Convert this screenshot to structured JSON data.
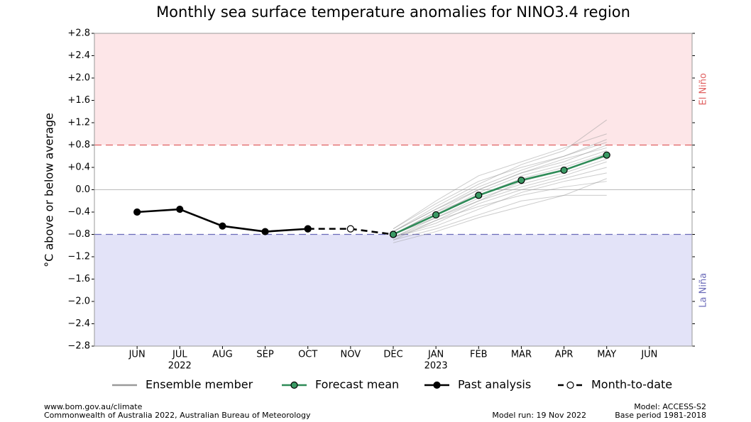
{
  "chart_data": {
    "type": "line",
    "title": "Monthly sea surface temperature anomalies for NINO3.4 region",
    "y_label": "°C above or below average",
    "categories": [
      "JUN",
      "JUL",
      "AUG",
      "SEP",
      "OCT",
      "NOV",
      "DEC",
      "JAN",
      "FEB",
      "MAR",
      "APR",
      "MAY",
      "JUN"
    ],
    "category_sublabels": [
      null,
      "2022",
      null,
      null,
      null,
      null,
      null,
      "2023",
      null,
      null,
      null,
      null,
      null
    ],
    "ylim": [
      -2.8,
      2.8
    ],
    "yticks": [
      {
        "value": 2.8,
        "label": "+2.8"
      },
      {
        "value": 2.4,
        "label": "+2.4"
      },
      {
        "value": 2.0,
        "label": "+2.0"
      },
      {
        "value": 1.6,
        "label": "+1.6"
      },
      {
        "value": 1.2,
        "label": "+1.2"
      },
      {
        "value": 0.8,
        "label": "+0.8"
      },
      {
        "value": 0.4,
        "label": "+0.4"
      },
      {
        "value": 0,
        "label": "0.0"
      },
      {
        "value": -0.4,
        "label": "−0.4"
      },
      {
        "value": -0.8,
        "label": "−0.8"
      },
      {
        "value": -1.2,
        "label": "−1.2"
      },
      {
        "value": -1.6,
        "label": "−1.6"
      },
      {
        "value": -2.0,
        "label": "−2.0"
      },
      {
        "value": -2.4,
        "label": "−2.4"
      },
      {
        "value": -2.8,
        "label": "−2.8"
      }
    ],
    "zero_line": true,
    "thresholds": [
      {
        "value": 0.8,
        "label": "El Niño",
        "color": "#e06060",
        "fill": "#fde6e8"
      },
      {
        "value": -0.8,
        "label": "La Niña",
        "color": "#6a6ab8",
        "fill": "#e3e3f8"
      }
    ],
    "ensemble": {
      "name": "Ensemble member",
      "color": "#9a9a9a",
      "members": [
        [
          null,
          null,
          null,
          null,
          null,
          null,
          -0.85,
          -0.55,
          -0.3,
          -0.1,
          0.05,
          0.15,
          null
        ],
        [
          null,
          null,
          null,
          null,
          null,
          null,
          -0.75,
          -0.35,
          0.05,
          0.35,
          0.6,
          0.85,
          null
        ],
        [
          null,
          null,
          null,
          null,
          null,
          null,
          -0.9,
          -0.7,
          -0.45,
          -0.2,
          -0.1,
          -0.1,
          null
        ],
        [
          null,
          null,
          null,
          null,
          null,
          null,
          -0.8,
          -0.4,
          0.0,
          0.3,
          0.55,
          0.75,
          null
        ],
        [
          null,
          null,
          null,
          null,
          null,
          null,
          -0.7,
          -0.2,
          0.25,
          0.5,
          0.75,
          1.0,
          null
        ],
        [
          null,
          null,
          null,
          null,
          null,
          null,
          -0.85,
          -0.6,
          -0.25,
          0.0,
          0.2,
          0.4,
          null
        ],
        [
          null,
          null,
          null,
          null,
          null,
          null,
          -0.8,
          -0.5,
          -0.15,
          0.1,
          0.3,
          0.55,
          null
        ],
        [
          null,
          null,
          null,
          null,
          null,
          null,
          -0.75,
          -0.3,
          0.1,
          0.45,
          0.7,
          1.25,
          null
        ],
        [
          null,
          null,
          null,
          null,
          null,
          null,
          -0.9,
          -0.55,
          -0.2,
          0.05,
          0.25,
          0.5,
          null
        ],
        [
          null,
          null,
          null,
          null,
          null,
          null,
          -0.8,
          -0.45,
          -0.05,
          0.25,
          0.45,
          0.7,
          null
        ],
        [
          null,
          null,
          null,
          null,
          null,
          null,
          -0.85,
          -0.5,
          -0.2,
          0.15,
          0.35,
          0.6,
          null
        ],
        [
          null,
          null,
          null,
          null,
          null,
          null,
          -0.7,
          -0.25,
          0.15,
          0.4,
          0.6,
          0.9,
          null
        ],
        [
          null,
          null,
          null,
          null,
          null,
          null,
          -0.95,
          -0.75,
          -0.5,
          -0.3,
          -0.1,
          0.2,
          null
        ],
        [
          null,
          null,
          null,
          null,
          null,
          null,
          -0.8,
          -0.4,
          -0.1,
          0.2,
          0.4,
          0.65,
          null
        ],
        [
          null,
          null,
          null,
          null,
          null,
          null,
          -0.75,
          -0.35,
          0.0,
          0.3,
          0.5,
          0.8,
          null
        ],
        [
          null,
          null,
          null,
          null,
          null,
          null,
          -0.85,
          -0.65,
          -0.35,
          -0.05,
          0.15,
          0.3,
          null
        ]
      ]
    },
    "series": [
      {
        "name": "Forecast mean",
        "color": "#2e8b57",
        "marker_fill": "#3a9a64",
        "style": "solid",
        "values": [
          null,
          null,
          null,
          null,
          null,
          null,
          -0.8,
          -0.45,
          -0.1,
          0.17,
          0.35,
          0.62,
          null
        ]
      },
      {
        "name": "Past analysis",
        "color": "#000000",
        "marker_fill": "#000000",
        "style": "solid",
        "values": [
          -0.4,
          -0.35,
          -0.65,
          -0.75,
          -0.7,
          null,
          null,
          null,
          null,
          null,
          null,
          null,
          null
        ]
      },
      {
        "name": "Month-to-date",
        "color": "#000000",
        "marker_fill": "#ffffff",
        "style": "dashed",
        "values": [
          null,
          null,
          null,
          null,
          -0.7,
          -0.7,
          -0.8,
          null,
          null,
          null,
          null,
          null,
          null
        ]
      }
    ],
    "footer": {
      "left": [
        "www.bom.gov.au/climate",
        "Commonwealth of Australia 2022, Australian Bureau of Meteorology"
      ],
      "center": "Model run: 19 Nov 2022",
      "right": [
        "Model: ACCESS-S2",
        "Base period 1981-2018"
      ]
    }
  }
}
